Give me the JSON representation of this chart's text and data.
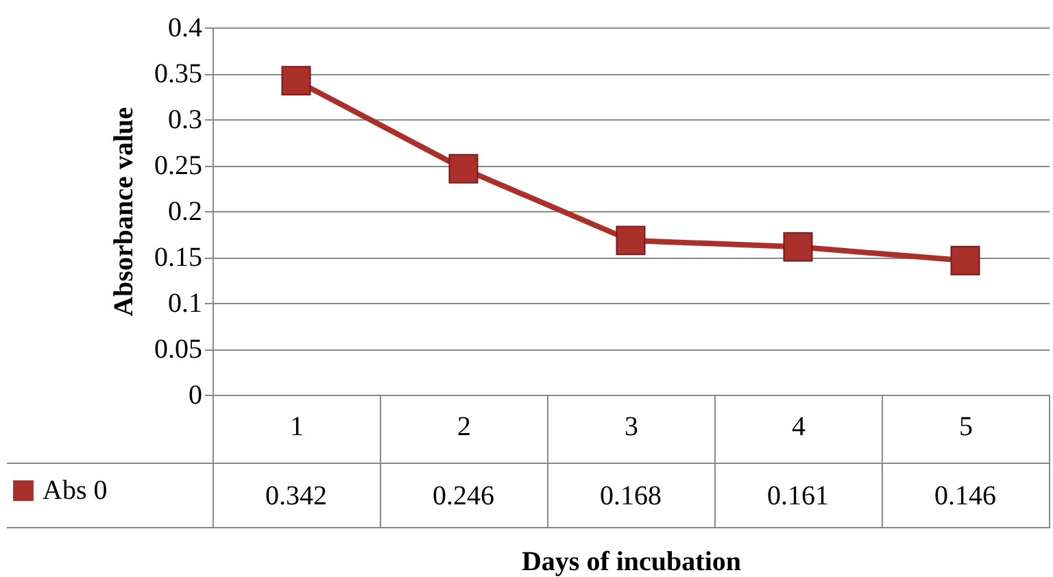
{
  "chart_data": {
    "type": "line",
    "xlabel": "Days of incubation",
    "ylabel": "Absorbance value",
    "categories": [
      "1",
      "2",
      "3",
      "4",
      "5"
    ],
    "series": [
      {
        "name": "Abs 0",
        "color": "#a9302b",
        "values": [
          0.342,
          0.246,
          0.168,
          0.161,
          0.146
        ]
      }
    ],
    "ylim": [
      0,
      0.4
    ],
    "yticks": [
      0,
      0.05,
      0.1,
      0.15,
      0.2,
      0.25,
      0.3,
      0.35,
      0.4
    ],
    "grid": "y",
    "marker": "square",
    "line_style": "solid",
    "legend": "bottom left",
    "data_labels": true
  }
}
